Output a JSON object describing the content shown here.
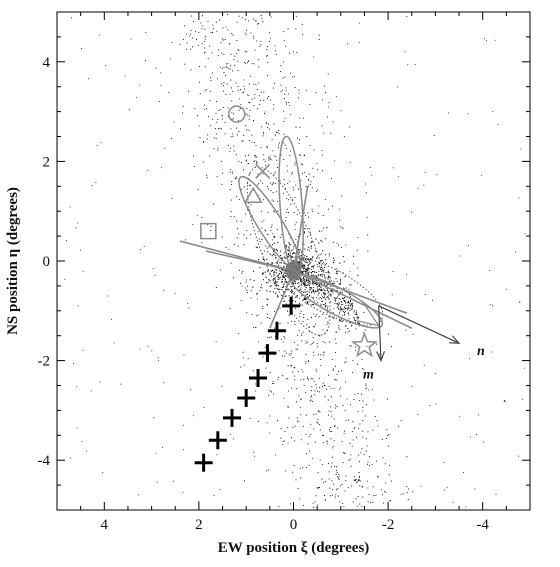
{
  "chart_data": {
    "type": "scatter",
    "title": "",
    "xlabel": "EW position ξ (degrees)",
    "ylabel": "NS position η (degrees)",
    "xlim": [
      5,
      -5
    ],
    "ylim": [
      -5,
      5
    ],
    "x_inverted": true,
    "xticks": [
      4,
      2,
      0,
      -2,
      -4
    ],
    "xtick_labels": [
      "4",
      "2",
      "0",
      "-2",
      "-4"
    ],
    "yticks": [
      4,
      2,
      0,
      -2,
      -4
    ],
    "ytick_labels": [
      "4",
      "2",
      "0",
      "-2",
      "-4"
    ],
    "grid": false,
    "legend": "none",
    "colors": {
      "stars": "#000000",
      "gray": "#8c8c8c",
      "axes": "#000000"
    },
    "plus_markers": [
      {
        "x": 0.05,
        "y": -0.9
      },
      {
        "x": 0.35,
        "y": -1.4
      },
      {
        "x": 0.55,
        "y": -1.85
      },
      {
        "x": 0.75,
        "y": -2.35
      },
      {
        "x": 1.0,
        "y": -2.75
      },
      {
        "x": 1.3,
        "y": -3.15
      },
      {
        "x": 1.6,
        "y": -3.6
      },
      {
        "x": 1.9,
        "y": -4.05
      }
    ],
    "gray_markers": [
      {
        "shape": "circle",
        "x": 1.2,
        "y": 2.95
      },
      {
        "shape": "cross",
        "x": 0.65,
        "y": 1.8
      },
      {
        "shape": "triangle",
        "x": 0.85,
        "y": 1.3
      },
      {
        "shape": "square",
        "x": 1.8,
        "y": 0.6
      },
      {
        "shape": "star",
        "x": -1.5,
        "y": -1.7
      }
    ],
    "center": {
      "x": 0.0,
      "y": -0.2
    },
    "vectors": [
      {
        "label": "n",
        "from": {
          "x": -1.8,
          "y": -0.9
        },
        "to": {
          "x": -3.5,
          "y": -1.65
        }
      },
      {
        "label": "m",
        "from": {
          "x": -1.8,
          "y": -0.9
        },
        "to": {
          "x": -1.85,
          "y": -2.0
        }
      }
    ],
    "star_field": {
      "description": "dense field of small black dots (member stars)",
      "count": 2200,
      "core": {
        "x": 0.0,
        "y": -0.2
      },
      "stream_axis_deg_from_north": 32
    }
  }
}
